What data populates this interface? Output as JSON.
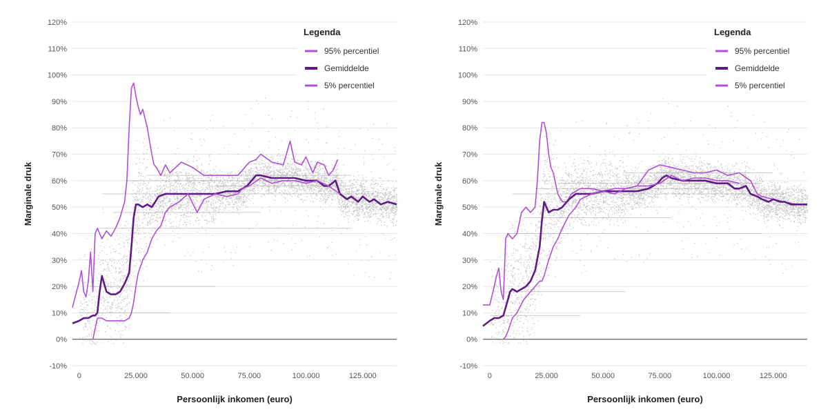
{
  "colors": {
    "p95": "#b04fd6",
    "mean": "#5e1b82",
    "p5": "#b04fd6",
    "scatter": "#9a9a9a",
    "grid": "#e6e6e6",
    "zero": "#555555"
  },
  "chart_data": [
    {
      "type": "line",
      "xlabel": "Persoonlijk inkomen (euro)",
      "ylabel": "Marginale druk",
      "xlim": [
        -3000,
        140000
      ],
      "ylim": [
        -10,
        120
      ],
      "x_ticks": [
        0,
        25000,
        50000,
        75000,
        100000,
        125000
      ],
      "x_tick_labels": [
        "0",
        "25.000",
        "50.000",
        "75.000",
        "100.000",
        "125.000"
      ],
      "y_ticks": [
        -10,
        0,
        10,
        20,
        30,
        40,
        50,
        60,
        70,
        80,
        90,
        100,
        110,
        120
      ],
      "y_tick_labels": [
        "-10%",
        "0%",
        "10%",
        "20%",
        "30%",
        "40%",
        "50%",
        "60%",
        "70%",
        "80%",
        "90%",
        "100%",
        "110%",
        "120%"
      ],
      "grid": true,
      "legend": {
        "title": "Legenda",
        "position": "top-right"
      },
      "series": [
        {
          "name": "95% percentiel",
          "color_key": "p95",
          "x": [
            -3000,
            0,
            1000,
            2000,
            3000,
            4000,
            5000,
            6000,
            7000,
            8000,
            9000,
            10000,
            12000,
            14000,
            16000,
            18000,
            20000,
            21000,
            22000,
            23000,
            24000,
            25000,
            26000,
            27000,
            28000,
            30000,
            32000,
            33000,
            34000,
            36000,
            38000,
            40000,
            45000,
            50000,
            55000,
            60000,
            65000,
            70000,
            75000,
            78000,
            80000,
            85000,
            90000,
            93000,
            95000,
            98000,
            100000,
            103000,
            105000,
            108000,
            110000,
            112000,
            114000
          ],
          "y": [
            12,
            22,
            26,
            18,
            16,
            22,
            33,
            18,
            40,
            42,
            40,
            38,
            41,
            39,
            42,
            46,
            52,
            60,
            80,
            95,
            97,
            92,
            88,
            85,
            87,
            80,
            70,
            66,
            65,
            62,
            66,
            63,
            67,
            65,
            62,
            62,
            62,
            62,
            67,
            68,
            70,
            67,
            66,
            75,
            67,
            66,
            69,
            63,
            67,
            66,
            62,
            64,
            68
          ]
        },
        {
          "name": "Gemiddelde",
          "color_key": "mean",
          "x": [
            -3000,
            0,
            2000,
            4000,
            6000,
            7000,
            8000,
            9000,
            10000,
            12000,
            14000,
            16000,
            18000,
            20000,
            22000,
            23000,
            24000,
            25000,
            26000,
            28000,
            30000,
            32000,
            35000,
            38000,
            40000,
            45000,
            50000,
            55000,
            60000,
            65000,
            70000,
            74000,
            76000,
            78000,
            80000,
            85000,
            90000,
            95000,
            100000,
            105000,
            108000,
            110000,
            113000,
            115000,
            118000,
            120000,
            123000,
            125000,
            128000,
            130000,
            133000,
            136000,
            140000
          ],
          "y": [
            6,
            7,
            8,
            8,
            9,
            9,
            10,
            18,
            24,
            18,
            17,
            17,
            18,
            21,
            25,
            35,
            46,
            51,
            51,
            50,
            51,
            50,
            54,
            55,
            55,
            55,
            55,
            55,
            55,
            56,
            56,
            58,
            60,
            62,
            62,
            61,
            61,
            61,
            60,
            60,
            58,
            58,
            60,
            55,
            53,
            54,
            52,
            54,
            52,
            53,
            51,
            52,
            51
          ]
        },
        {
          "name": "5% percentiel",
          "color_key": "p5",
          "x": [
            6000,
            8000,
            10000,
            12000,
            15000,
            20000,
            22000,
            23000,
            24000,
            25000,
            26000,
            28000,
            30000,
            32000,
            34000,
            36000,
            38000,
            40000,
            44000,
            48000,
            52000,
            55000,
            60000,
            65000,
            70000,
            72000,
            75000,
            80000,
            85000,
            90000,
            95000,
            100000,
            105000,
            110000,
            115000
          ],
          "y": [
            0,
            8,
            8,
            7,
            7,
            7,
            8,
            10,
            14,
            20,
            25,
            30,
            33,
            38,
            41,
            43,
            48,
            50,
            52,
            55,
            48,
            53,
            55,
            54,
            55,
            57,
            58,
            61,
            59,
            60,
            60,
            59,
            60,
            58,
            55
          ]
        }
      ]
    },
    {
      "type": "line",
      "xlabel": "Persoonlijk inkomen (euro)",
      "ylabel": "Marginale druk",
      "xlim": [
        -3000,
        140000
      ],
      "ylim": [
        -10,
        120
      ],
      "x_ticks": [
        0,
        25000,
        50000,
        75000,
        100000,
        125000
      ],
      "x_tick_labels": [
        "0",
        "25.000",
        "50.000",
        "75.000",
        "100.000",
        "125.000"
      ],
      "y_ticks": [
        -10,
        0,
        10,
        20,
        30,
        40,
        50,
        60,
        70,
        80,
        90,
        100,
        110,
        120
      ],
      "y_tick_labels": [
        "-10%",
        "0%",
        "10%",
        "20%",
        "30%",
        "40%",
        "50%",
        "60%",
        "70%",
        "80%",
        "90%",
        "100%",
        "110%",
        "120%"
      ],
      "grid": true,
      "legend": {
        "title": "Legenda",
        "position": "top-right"
      },
      "series": [
        {
          "name": "95% percentiel",
          "color_key": "p95",
          "x": [
            -3000,
            0,
            2000,
            3000,
            4000,
            5000,
            6000,
            7000,
            8000,
            10000,
            12000,
            14000,
            16000,
            18000,
            20000,
            21000,
            22000,
            23000,
            24000,
            25000,
            26000,
            27000,
            28000,
            30000,
            32000,
            34000,
            36000,
            40000,
            45000,
            50000,
            55000,
            60000,
            65000,
            70000,
            75000,
            80000,
            85000,
            90000,
            95000,
            100000,
            105000,
            110000,
            115000,
            118000,
            120000,
            125000,
            130000,
            135000,
            140000
          ],
          "y": [
            13,
            13,
            20,
            24,
            27,
            18,
            15,
            38,
            40,
            38,
            40,
            48,
            50,
            48,
            50,
            60,
            75,
            82,
            82,
            78,
            70,
            65,
            63,
            55,
            52,
            52,
            55,
            57,
            57,
            56,
            57,
            57,
            58,
            64,
            66,
            65,
            64,
            63,
            63,
            64,
            62,
            63,
            60,
            55,
            54,
            53,
            52,
            51,
            51
          ]
        },
        {
          "name": "Gemiddelde",
          "color_key": "mean",
          "x": [
            -3000,
            0,
            2000,
            4000,
            6000,
            7000,
            8000,
            9000,
            10000,
            12000,
            14000,
            16000,
            18000,
            20000,
            22000,
            23000,
            24000,
            25000,
            26000,
            28000,
            30000,
            32000,
            35000,
            38000,
            40000,
            45000,
            50000,
            55000,
            60000,
            65000,
            70000,
            74000,
            76000,
            78000,
            80000,
            85000,
            90000,
            95000,
            100000,
            105000,
            108000,
            110000,
            113000,
            115000,
            118000,
            120000,
            123000,
            125000,
            128000,
            130000,
            133000,
            136000,
            140000
          ],
          "y": [
            5,
            7,
            8,
            8,
            9,
            12,
            15,
            18,
            19,
            18,
            19,
            20,
            22,
            26,
            35,
            45,
            52,
            50,
            48,
            49,
            49,
            50,
            53,
            55,
            55,
            55,
            56,
            56,
            56,
            56,
            57,
            59,
            61,
            62,
            61,
            60,
            60,
            60,
            59,
            59,
            57,
            57,
            58,
            55,
            54,
            53,
            52,
            53,
            52,
            52,
            51,
            51,
            51
          ]
        },
        {
          "name": "5% percentiel",
          "color_key": "p5",
          "x": [
            6000,
            7000,
            8000,
            10000,
            12000,
            15000,
            18000,
            20000,
            22000,
            23000,
            24000,
            25000,
            26000,
            28000,
            30000,
            32000,
            35000,
            38000,
            40000,
            45000,
            50000,
            55000,
            60000,
            65000,
            70000,
            75000,
            80000,
            85000,
            90000,
            95000,
            100000,
            105000,
            110000
          ],
          "y": [
            0,
            1,
            3,
            8,
            10,
            15,
            18,
            20,
            22,
            22,
            24,
            27,
            30,
            35,
            38,
            42,
            47,
            50,
            53,
            55,
            56,
            55,
            57,
            58,
            58,
            59,
            62,
            60,
            61,
            61,
            60,
            60,
            59
          ]
        }
      ]
    }
  ]
}
